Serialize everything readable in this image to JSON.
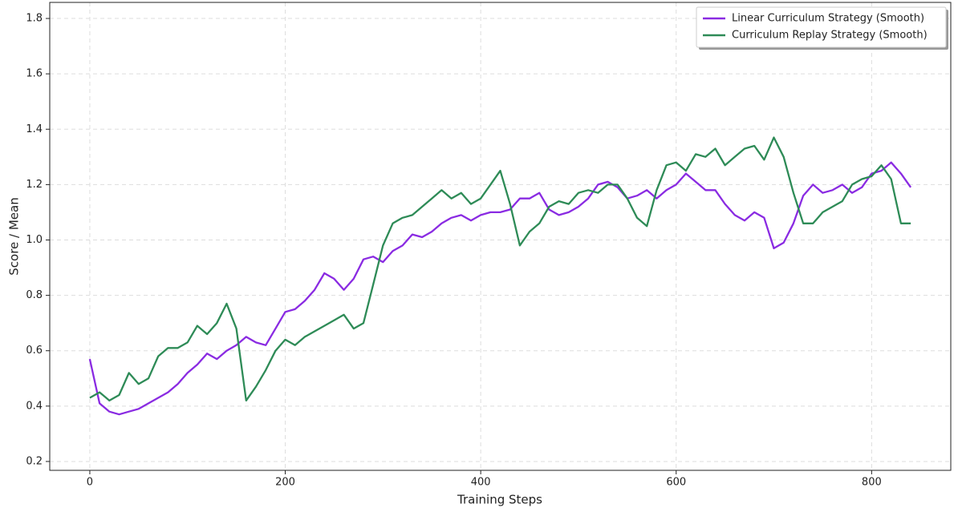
{
  "chart_data": {
    "type": "line",
    "xlabel": "Training Steps",
    "ylabel": "Score / Mean",
    "x": [
      0,
      10,
      20,
      30,
      40,
      50,
      60,
      70,
      80,
      90,
      100,
      110,
      120,
      130,
      140,
      150,
      160,
      170,
      180,
      190,
      200,
      210,
      220,
      230,
      240,
      250,
      260,
      270,
      280,
      290,
      300,
      310,
      320,
      330,
      340,
      350,
      360,
      370,
      380,
      390,
      400,
      410,
      420,
      430,
      440,
      450,
      460,
      470,
      480,
      490,
      500,
      510,
      520,
      530,
      540,
      550,
      560,
      570,
      580,
      590,
      600,
      610,
      620,
      630,
      640,
      650,
      660,
      670,
      680,
      690,
      700,
      710,
      720,
      730,
      740,
      750,
      760,
      770,
      780,
      790,
      800,
      810,
      820,
      830,
      840
    ],
    "series": [
      {
        "name": "Linear Curriculum Strategy (Smooth)",
        "color": "#8a2be2",
        "values": [
          0.57,
          0.41,
          0.38,
          0.37,
          0.38,
          0.39,
          0.41,
          0.43,
          0.45,
          0.48,
          0.52,
          0.55,
          0.59,
          0.57,
          0.6,
          0.62,
          0.65,
          0.63,
          0.62,
          0.68,
          0.74,
          0.75,
          0.78,
          0.82,
          0.88,
          0.86,
          0.82,
          0.86,
          0.93,
          0.94,
          0.92,
          0.96,
          0.98,
          1.02,
          1.01,
          1.03,
          1.06,
          1.08,
          1.09,
          1.07,
          1.09,
          1.1,
          1.1,
          1.11,
          1.15,
          1.15,
          1.17,
          1.11,
          1.09,
          1.1,
          1.12,
          1.15,
          1.2,
          1.21,
          1.19,
          1.15,
          1.16,
          1.18,
          1.15,
          1.18,
          1.2,
          1.24,
          1.21,
          1.18,
          1.18,
          1.13,
          1.09,
          1.07,
          1.1,
          1.08,
          0.97,
          0.99,
          1.06,
          1.16,
          1.2,
          1.17,
          1.18,
          1.2,
          1.17,
          1.19,
          1.24,
          1.25,
          1.28,
          1.24,
          1.19
        ]
      },
      {
        "name": "Curriculum Replay Strategy (Smooth)",
        "color": "#2e8b57",
        "values": [
          0.43,
          0.45,
          0.42,
          0.44,
          0.52,
          0.48,
          0.5,
          0.58,
          0.61,
          0.61,
          0.63,
          0.69,
          0.66,
          0.7,
          0.77,
          0.68,
          0.42,
          0.47,
          0.53,
          0.6,
          0.64,
          0.62,
          0.65,
          0.67,
          0.69,
          0.71,
          0.73,
          0.68,
          0.7,
          0.84,
          0.98,
          1.06,
          1.08,
          1.09,
          1.12,
          1.15,
          1.18,
          1.15,
          1.17,
          1.13,
          1.15,
          1.2,
          1.25,
          1.13,
          0.98,
          1.03,
          1.06,
          1.12,
          1.14,
          1.13,
          1.17,
          1.18,
          1.17,
          1.2,
          1.2,
          1.15,
          1.08,
          1.05,
          1.18,
          1.27,
          1.28,
          1.25,
          1.31,
          1.3,
          1.33,
          1.27,
          1.3,
          1.33,
          1.34,
          1.29,
          1.37,
          1.3,
          1.17,
          1.06,
          1.06,
          1.1,
          1.12,
          1.14,
          1.2,
          1.22,
          1.23,
          1.27,
          1.22,
          1.06,
          1.06
        ]
      }
    ],
    "xlim": [
      -41,
      881
    ],
    "ylim": [
      0.168,
      1.858
    ],
    "xticks": [
      0,
      200,
      400,
      600,
      800
    ],
    "yticks": [
      0.2,
      0.4,
      0.6,
      0.8,
      {
        "value": 1,
        "label": "1.0"
      },
      1.2,
      1.4,
      1.6,
      1.8
    ],
    "grid": true,
    "legend": "upper right"
  }
}
